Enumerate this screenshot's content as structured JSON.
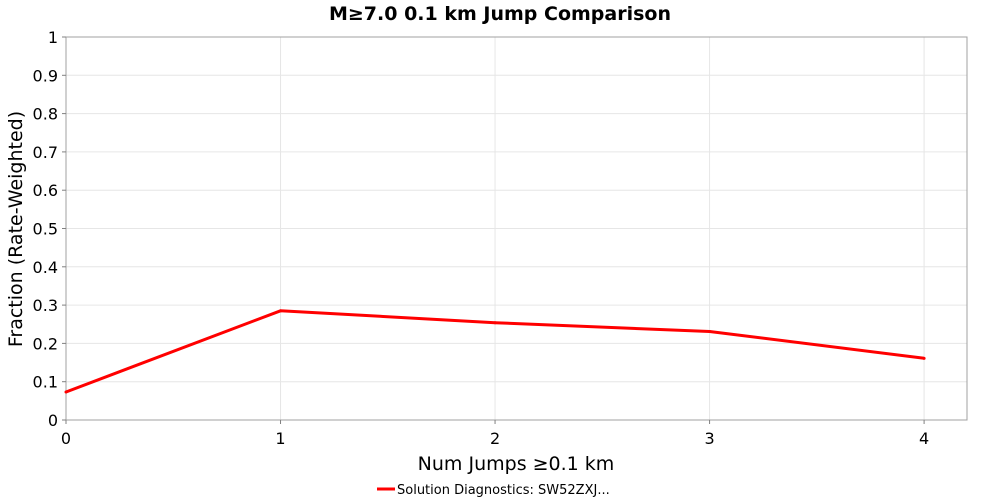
{
  "chart_data": {
    "type": "line",
    "title": "M≥7.0 0.1 km Jump Comparison",
    "xlabel": "Num Jumps ≥0.1 km",
    "ylabel": "Fraction (Rate-Weighted)",
    "xlim": [
      0,
      4.2
    ],
    "ylim": [
      0,
      1
    ],
    "x_ticks": [
      "0",
      "1",
      "2",
      "3",
      "4"
    ],
    "y_ticks": [
      "0",
      "0.1",
      "0.2",
      "0.3",
      "0.4",
      "0.5",
      "0.6",
      "0.7",
      "0.8",
      "0.9",
      "1"
    ],
    "grid": true,
    "legend_position": "bottom-center",
    "series": [
      {
        "name": "Solution Diagnostics: SW52ZXJ...",
        "color": "#ff0000",
        "x": [
          0,
          1,
          2,
          3,
          4
        ],
        "values": [
          0.073,
          0.285,
          0.254,
          0.231,
          0.161
        ]
      }
    ]
  }
}
